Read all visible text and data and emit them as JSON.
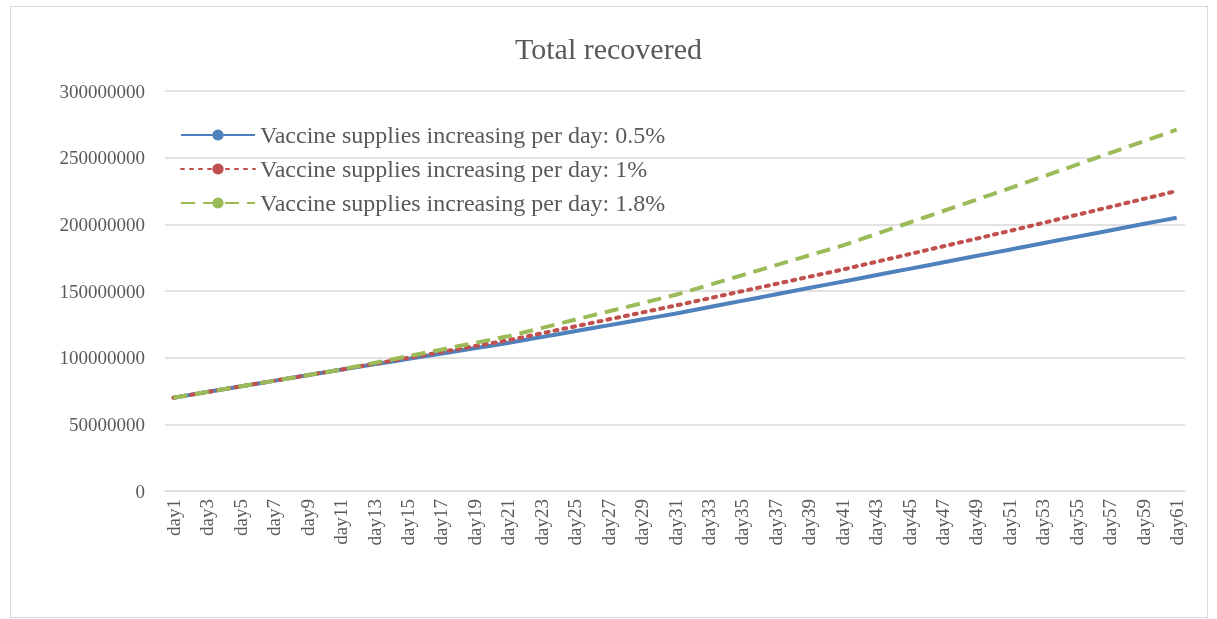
{
  "chart_data": {
    "type": "line",
    "title": "Total recovered",
    "categories": [
      "day1",
      null,
      "day3",
      null,
      "day5",
      null,
      "day7",
      null,
      "day9",
      null,
      "day11",
      null,
      "day13",
      null,
      "day15",
      null,
      "day17",
      null,
      "day19",
      null,
      "day21",
      null,
      "day23",
      null,
      "day25",
      null,
      "day27",
      null,
      "day29",
      null,
      "day31",
      null,
      "day33",
      null,
      "day35",
      null,
      "day37",
      null,
      "day39",
      null,
      "day41",
      null,
      "day43",
      null,
      "day45",
      null,
      "day47",
      null,
      "day49",
      null,
      "day51",
      null,
      "day53",
      null,
      "day55",
      null,
      "day57",
      null,
      "day59",
      null,
      "day61"
    ],
    "series": [
      {
        "name": "Vaccine supplies increasing per day: 0.5%",
        "color": "#4f81bd",
        "line_style": "solid",
        "values": [
          70000000,
          72100000,
          74200000,
          76300000,
          78400000,
          80500000,
          82600000,
          84700000,
          86800000,
          88900000,
          91000000,
          93000000,
          95000000,
          97000000,
          99000000,
          101000000,
          103000000,
          105000000,
          107000000,
          109000000,
          111000000,
          113200000,
          115400000,
          117600000,
          119800000,
          122000000,
          124200000,
          126400000,
          128600000,
          130800000,
          133000000,
          135400000,
          137800000,
          140200000,
          142600000,
          145000000,
          147400000,
          149800000,
          152200000,
          154600000,
          157000000,
          159400000,
          161800000,
          164200000,
          166600000,
          169000000,
          171400000,
          173800000,
          176200000,
          178600000,
          181000000,
          183400000,
          185800000,
          188200000,
          190600000,
          193000000,
          195400000,
          197800000,
          200200000,
          202600000,
          205000000
        ]
      },
      {
        "name": "Vaccine supplies increasing per day: 1%",
        "color": "#c0504d",
        "line_style": "dotted",
        "values": [
          70000000,
          72100000,
          74200000,
          76300000,
          78400000,
          80500000,
          82600000,
          84700000,
          86800000,
          88900000,
          91000000,
          93200000,
          95400000,
          97600000,
          99800000,
          102000000,
          104200000,
          106400000,
          108600000,
          110800000,
          113000000,
          115600000,
          118200000,
          120800000,
          123400000,
          126000000,
          128600000,
          131200000,
          133800000,
          136400000,
          139000000,
          141700000,
          144400000,
          147100000,
          149800000,
          152500000,
          155200000,
          157900000,
          160600000,
          163300000,
          166000000,
          168900000,
          171800000,
          174700000,
          177600000,
          180500000,
          183400000,
          186300000,
          189200000,
          192100000,
          195000000,
          198000000,
          201000000,
          204000000,
          207000000,
          210000000,
          213000000,
          216000000,
          219000000,
          222000000,
          225000000
        ]
      },
      {
        "name": "Vaccine supplies increasing per day: 1.8%",
        "color": "#9bbb59",
        "line_style": "dashed",
        "values": [
          70000000,
          72100000,
          74200000,
          76300000,
          78400000,
          80500000,
          82600000,
          84700000,
          86800000,
          88900000,
          91000000,
          93500000,
          96000000,
          98500000,
          101000000,
          103500000,
          106000000,
          108500000,
          111000000,
          113500000,
          116000000,
          119100000,
          122200000,
          125300000,
          128400000,
          131500000,
          134600000,
          137700000,
          140800000,
          143900000,
          147000000,
          150700000,
          154400000,
          158100000,
          161800000,
          165500000,
          169200000,
          172900000,
          176600000,
          180300000,
          184000000,
          188300000,
          192600000,
          196900000,
          201200000,
          205500000,
          209800000,
          214100000,
          218400000,
          222700000,
          227000000,
          231400000,
          235800000,
          240200000,
          244600000,
          249000000,
          253400000,
          257800000,
          262200000,
          266600000,
          271000000
        ]
      }
    ],
    "ylim": [
      0,
      300000000
    ],
    "yticks": [
      0,
      50000000,
      100000000,
      150000000,
      200000000,
      250000000,
      300000000
    ],
    "grid": "y",
    "legend": "top left",
    "marker": "none"
  }
}
